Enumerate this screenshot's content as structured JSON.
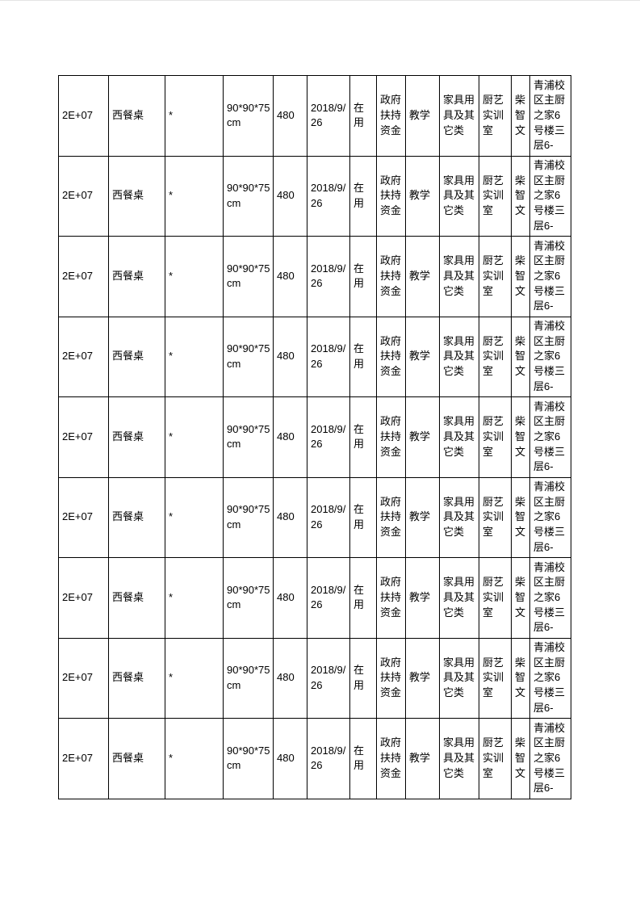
{
  "page": {
    "background_color": "#ffffff",
    "text_color": "#000000",
    "grid_color": "#000000"
  },
  "table": {
    "column_semantics": [
      "asset-id",
      "asset-name",
      "model",
      "spec",
      "price",
      "acquire-date",
      "status",
      "fund-source",
      "purpose",
      "category",
      "room",
      "custodian",
      "location"
    ],
    "rows": [
      [
        "2E+07",
        "西餐桌",
        "*",
        "90*90*75\ncm",
        "480",
        "2018/9/\n26",
        "在用",
        "政府\n扶持\n资金",
        "教学",
        "家具用\n具及其\n它类",
        "厨艺\n实训\n室",
        "柴\n智\n文",
        "青浦校\n区主厨\n之家6\n号楼三\n层6-"
      ],
      [
        "2E+07",
        "西餐桌",
        "*",
        "90*90*75\ncm",
        "480",
        "2018/9/\n26",
        "在用",
        "政府\n扶持\n资金",
        "教学",
        "家具用\n具及其\n它类",
        "厨艺\n实训\n室",
        "柴\n智\n文",
        "青浦校\n区主厨\n之家6\n号楼三\n层6-"
      ],
      [
        "2E+07",
        "西餐桌",
        "*",
        "90*90*75\ncm",
        "480",
        "2018/9/\n26",
        "在用",
        "政府\n扶持\n资金",
        "教学",
        "家具用\n具及其\n它类",
        "厨艺\n实训\n室",
        "柴\n智\n文",
        "青浦校\n区主厨\n之家6\n号楼三\n层6-"
      ],
      [
        "2E+07",
        "西餐桌",
        "*",
        "90*90*75\ncm",
        "480",
        "2018/9/\n26",
        "在用",
        "政府\n扶持\n资金",
        "教学",
        "家具用\n具及其\n它类",
        "厨艺\n实训\n室",
        "柴\n智\n文",
        "青浦校\n区主厨\n之家6\n号楼三\n层6-"
      ],
      [
        "2E+07",
        "西餐桌",
        "*",
        "90*90*75\ncm",
        "480",
        "2018/9/\n26",
        "在用",
        "政府\n扶持\n资金",
        "教学",
        "家具用\n具及其\n它类",
        "厨艺\n实训\n室",
        "柴\n智\n文",
        "青浦校\n区主厨\n之家6\n号楼三\n层6-"
      ],
      [
        "2E+07",
        "西餐桌",
        "*",
        "90*90*75\ncm",
        "480",
        "2018/9/\n26",
        "在用",
        "政府\n扶持\n资金",
        "教学",
        "家具用\n具及其\n它类",
        "厨艺\n实训\n室",
        "柴\n智\n文",
        "青浦校\n区主厨\n之家6\n号楼三\n层6-"
      ],
      [
        "2E+07",
        "西餐桌",
        "*",
        "90*90*75\ncm",
        "480",
        "2018/9/\n26",
        "在用",
        "政府\n扶持\n资金",
        "教学",
        "家具用\n具及其\n它类",
        "厨艺\n实训\n室",
        "柴\n智\n文",
        "青浦校\n区主厨\n之家6\n号楼三\n层6-"
      ],
      [
        "2E+07",
        "西餐桌",
        "*",
        "90*90*75\ncm",
        "480",
        "2018/9/\n26",
        "在用",
        "政府\n扶持\n资金",
        "教学",
        "家具用\n具及其\n它类",
        "厨艺\n实训\n室",
        "柴\n智\n文",
        "青浦校\n区主厨\n之家6\n号楼三\n层6-"
      ],
      [
        "2E+07",
        "西餐桌",
        "*",
        "90*90*75\ncm",
        "480",
        "2018/9/\n26",
        "在用",
        "政府\n扶持\n资金",
        "教学",
        "家具用\n具及其\n它类",
        "厨艺\n实训\n室",
        "柴\n智\n文",
        "青浦校\n区主厨\n之家6\n号楼三\n层6-"
      ]
    ]
  }
}
